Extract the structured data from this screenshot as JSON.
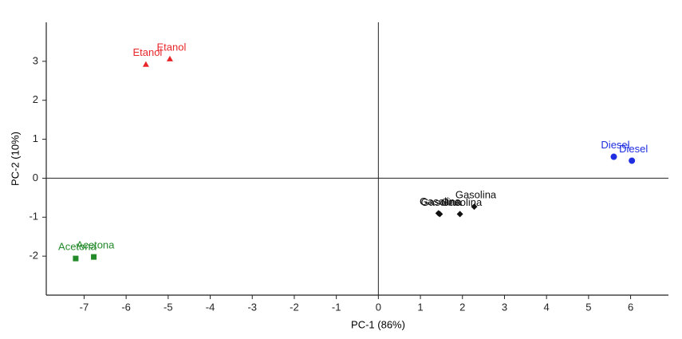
{
  "chart_data": {
    "type": "scatter",
    "x_label": "PC-1 (86%)",
    "y_label": "PC-2 (10%)",
    "xlim": [
      -7.9,
      6.9
    ],
    "ylim": [
      -3,
      4
    ],
    "xticks": [
      -7,
      -6,
      -5,
      -4,
      -3,
      -2,
      -1,
      0,
      1,
      2,
      3,
      4,
      5,
      6
    ],
    "yticks": [
      -2,
      -1,
      0,
      1,
      2,
      3
    ],
    "series": [
      {
        "name": "Etanol",
        "color": "#e8262a",
        "marker": "triangle",
        "x": [
          -5.53,
          -4.96
        ],
        "y": [
          2.92,
          3.06
        ]
      },
      {
        "name": "Acetona",
        "color": "#238a2a",
        "marker": "square",
        "x": [
          -7.2,
          -6.77
        ],
        "y": [
          -2.06,
          -2.02
        ]
      },
      {
        "name": "Gasolina",
        "color": "#111111",
        "marker": "diamond",
        "x": [
          1.43,
          1.46,
          1.94,
          2.28
        ],
        "y": [
          -0.9,
          -0.92,
          -0.92,
          -0.73
        ]
      },
      {
        "name": "Diesel",
        "color": "#1f2ee0",
        "marker": "circle",
        "x": [
          5.6,
          6.03
        ],
        "y": [
          0.55,
          0.45
        ]
      }
    ]
  }
}
